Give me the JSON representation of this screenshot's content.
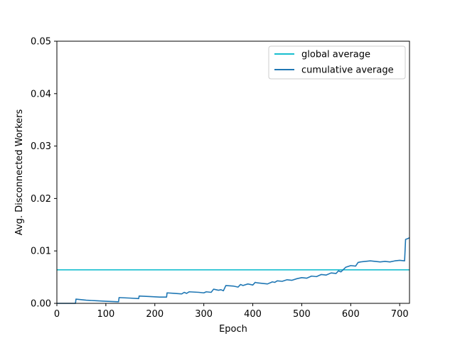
{
  "chart_data": {
    "type": "line",
    "title": "",
    "xlabel": "Epoch",
    "ylabel": "Avg. Disconnected Workers",
    "xlim": [
      0,
      720
    ],
    "ylim": [
      0,
      0.05
    ],
    "xticks": [
      0,
      100,
      200,
      300,
      400,
      500,
      600,
      700
    ],
    "xtick_labels": [
      "0",
      "100",
      "200",
      "300",
      "400",
      "500",
      "600",
      "700"
    ],
    "yticks": [
      0,
      0.01,
      0.02,
      0.03,
      0.04,
      0.05
    ],
    "ytick_labels": [
      "0.00",
      "0.01",
      "0.02",
      "0.03",
      "0.04",
      "0.05"
    ],
    "grid": false,
    "legend_position": "top-right",
    "series": [
      {
        "name": "global average",
        "color": "#17becf",
        "kind": "hline",
        "y": 0.0064
      },
      {
        "name": "cumulative average",
        "color": "#1f77b4",
        "kind": "line",
        "x": [
          0,
          38,
          39,
          60,
          80,
          100,
          126,
          127,
          150,
          167,
          168,
          190,
          210,
          224,
          225,
          240,
          255,
          260,
          265,
          270,
          290,
          300,
          305,
          315,
          320,
          330,
          335,
          340,
          345,
          360,
          370,
          375,
          380,
          390,
          400,
          405,
          410,
          420,
          430,
          440,
          445,
          450,
          460,
          470,
          480,
          490,
          500,
          510,
          520,
          530,
          540,
          550,
          560,
          570,
          575,
          580,
          590,
          600,
          610,
          615,
          620,
          640,
          660,
          670,
          680,
          690,
          700,
          710,
          712,
          715,
          720
        ],
        "y": [
          0,
          0,
          0.0008,
          0.0006,
          0.0005,
          0.0004,
          0.0003,
          0.0011,
          0.001,
          0.0009,
          0.0014,
          0.0013,
          0.0012,
          0.0012,
          0.002,
          0.0019,
          0.0018,
          0.0021,
          0.0019,
          0.0022,
          0.0021,
          0.002,
          0.0022,
          0.0021,
          0.0027,
          0.0025,
          0.0026,
          0.0024,
          0.0034,
          0.0033,
          0.0031,
          0.0036,
          0.0034,
          0.0037,
          0.0035,
          0.004,
          0.0039,
          0.0038,
          0.0037,
          0.0041,
          0.004,
          0.0043,
          0.0042,
          0.0045,
          0.0044,
          0.0047,
          0.0049,
          0.0048,
          0.0052,
          0.0051,
          0.0055,
          0.0054,
          0.0058,
          0.0057,
          0.0062,
          0.006,
          0.0069,
          0.0072,
          0.0071,
          0.0078,
          0.0079,
          0.0081,
          0.0079,
          0.008,
          0.0079,
          0.0081,
          0.0082,
          0.0081,
          0.0122,
          0.0123,
          0.0125
        ]
      }
    ]
  }
}
